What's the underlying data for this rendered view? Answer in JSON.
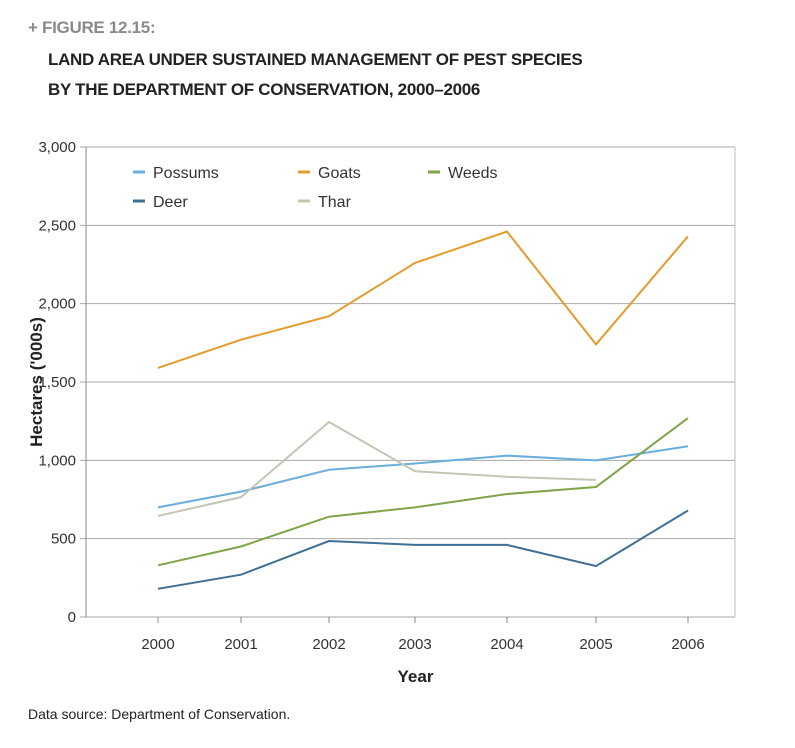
{
  "figure_label": "+ FIGURE 12.15:",
  "title_line1": "LAND AREA UNDER SUSTAINED MANAGEMENT OF PEST SPECIES",
  "title_line2": "BY THE DEPARTMENT OF CONSERVATION, 2000–2006",
  "source": "Data source: Department of Conservation.",
  "chart_data": {
    "type": "line",
    "xlabel": "Year",
    "ylabel": "Hectares ('000s)",
    "x": [
      "2000",
      "2001",
      "2002",
      "2003",
      "2004",
      "2005",
      "2006"
    ],
    "ylim": [
      0,
      3000
    ],
    "yticks": [
      "0",
      "500",
      "1,000",
      "1,500",
      "2,000",
      "2,500",
      "3,000"
    ],
    "grid": true,
    "legend": "top-left",
    "series": [
      {
        "name": "Possums",
        "color": "#6aaede",
        "values": [
          700,
          800,
          940,
          980,
          1030,
          1000,
          1090
        ]
      },
      {
        "name": "Goats",
        "color": "#e59a2c",
        "values": [
          1590,
          1770,
          1920,
          2260,
          2460,
          1740,
          2430
        ]
      },
      {
        "name": "Weeds",
        "color": "#80a448",
        "values": [
          330,
          450,
          640,
          700,
          785,
          830,
          1270
        ]
      },
      {
        "name": "Deer",
        "color": "#3f6f94",
        "values": [
          180,
          270,
          485,
          460,
          460,
          325,
          680
        ]
      },
      {
        "name": "Thar",
        "color": "#c4c6b4",
        "values": [
          645,
          765,
          1245,
          930,
          895,
          875,
          null
        ]
      }
    ]
  }
}
